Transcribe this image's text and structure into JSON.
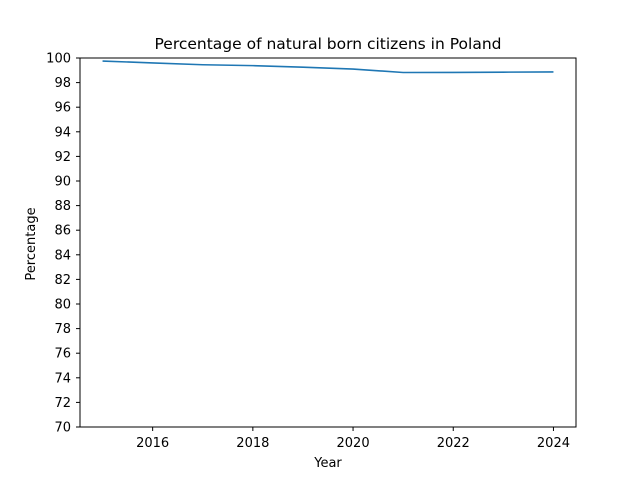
{
  "chart_data": {
    "type": "line",
    "title": "Percentage of natural born citizens in Poland",
    "xlabel": "Year",
    "ylabel": "Percentage",
    "xlim": [
      2014.55,
      2024.45
    ],
    "ylim": [
      70,
      100
    ],
    "xticks": [
      2016,
      2018,
      2020,
      2022,
      2024
    ],
    "yticks": [
      70,
      72,
      74,
      76,
      78,
      80,
      82,
      84,
      86,
      88,
      90,
      92,
      94,
      96,
      98,
      100
    ],
    "grid": false,
    "legend": "none",
    "series": [
      {
        "color": "#1f77b4",
        "x": [
          2015,
          2016,
          2017,
          2018,
          2019,
          2020,
          2021,
          2022,
          2023,
          2024
        ],
        "y": [
          99.75,
          99.6,
          99.45,
          99.38,
          99.25,
          99.1,
          98.82,
          98.83,
          98.85,
          98.87
        ]
      }
    ]
  }
}
